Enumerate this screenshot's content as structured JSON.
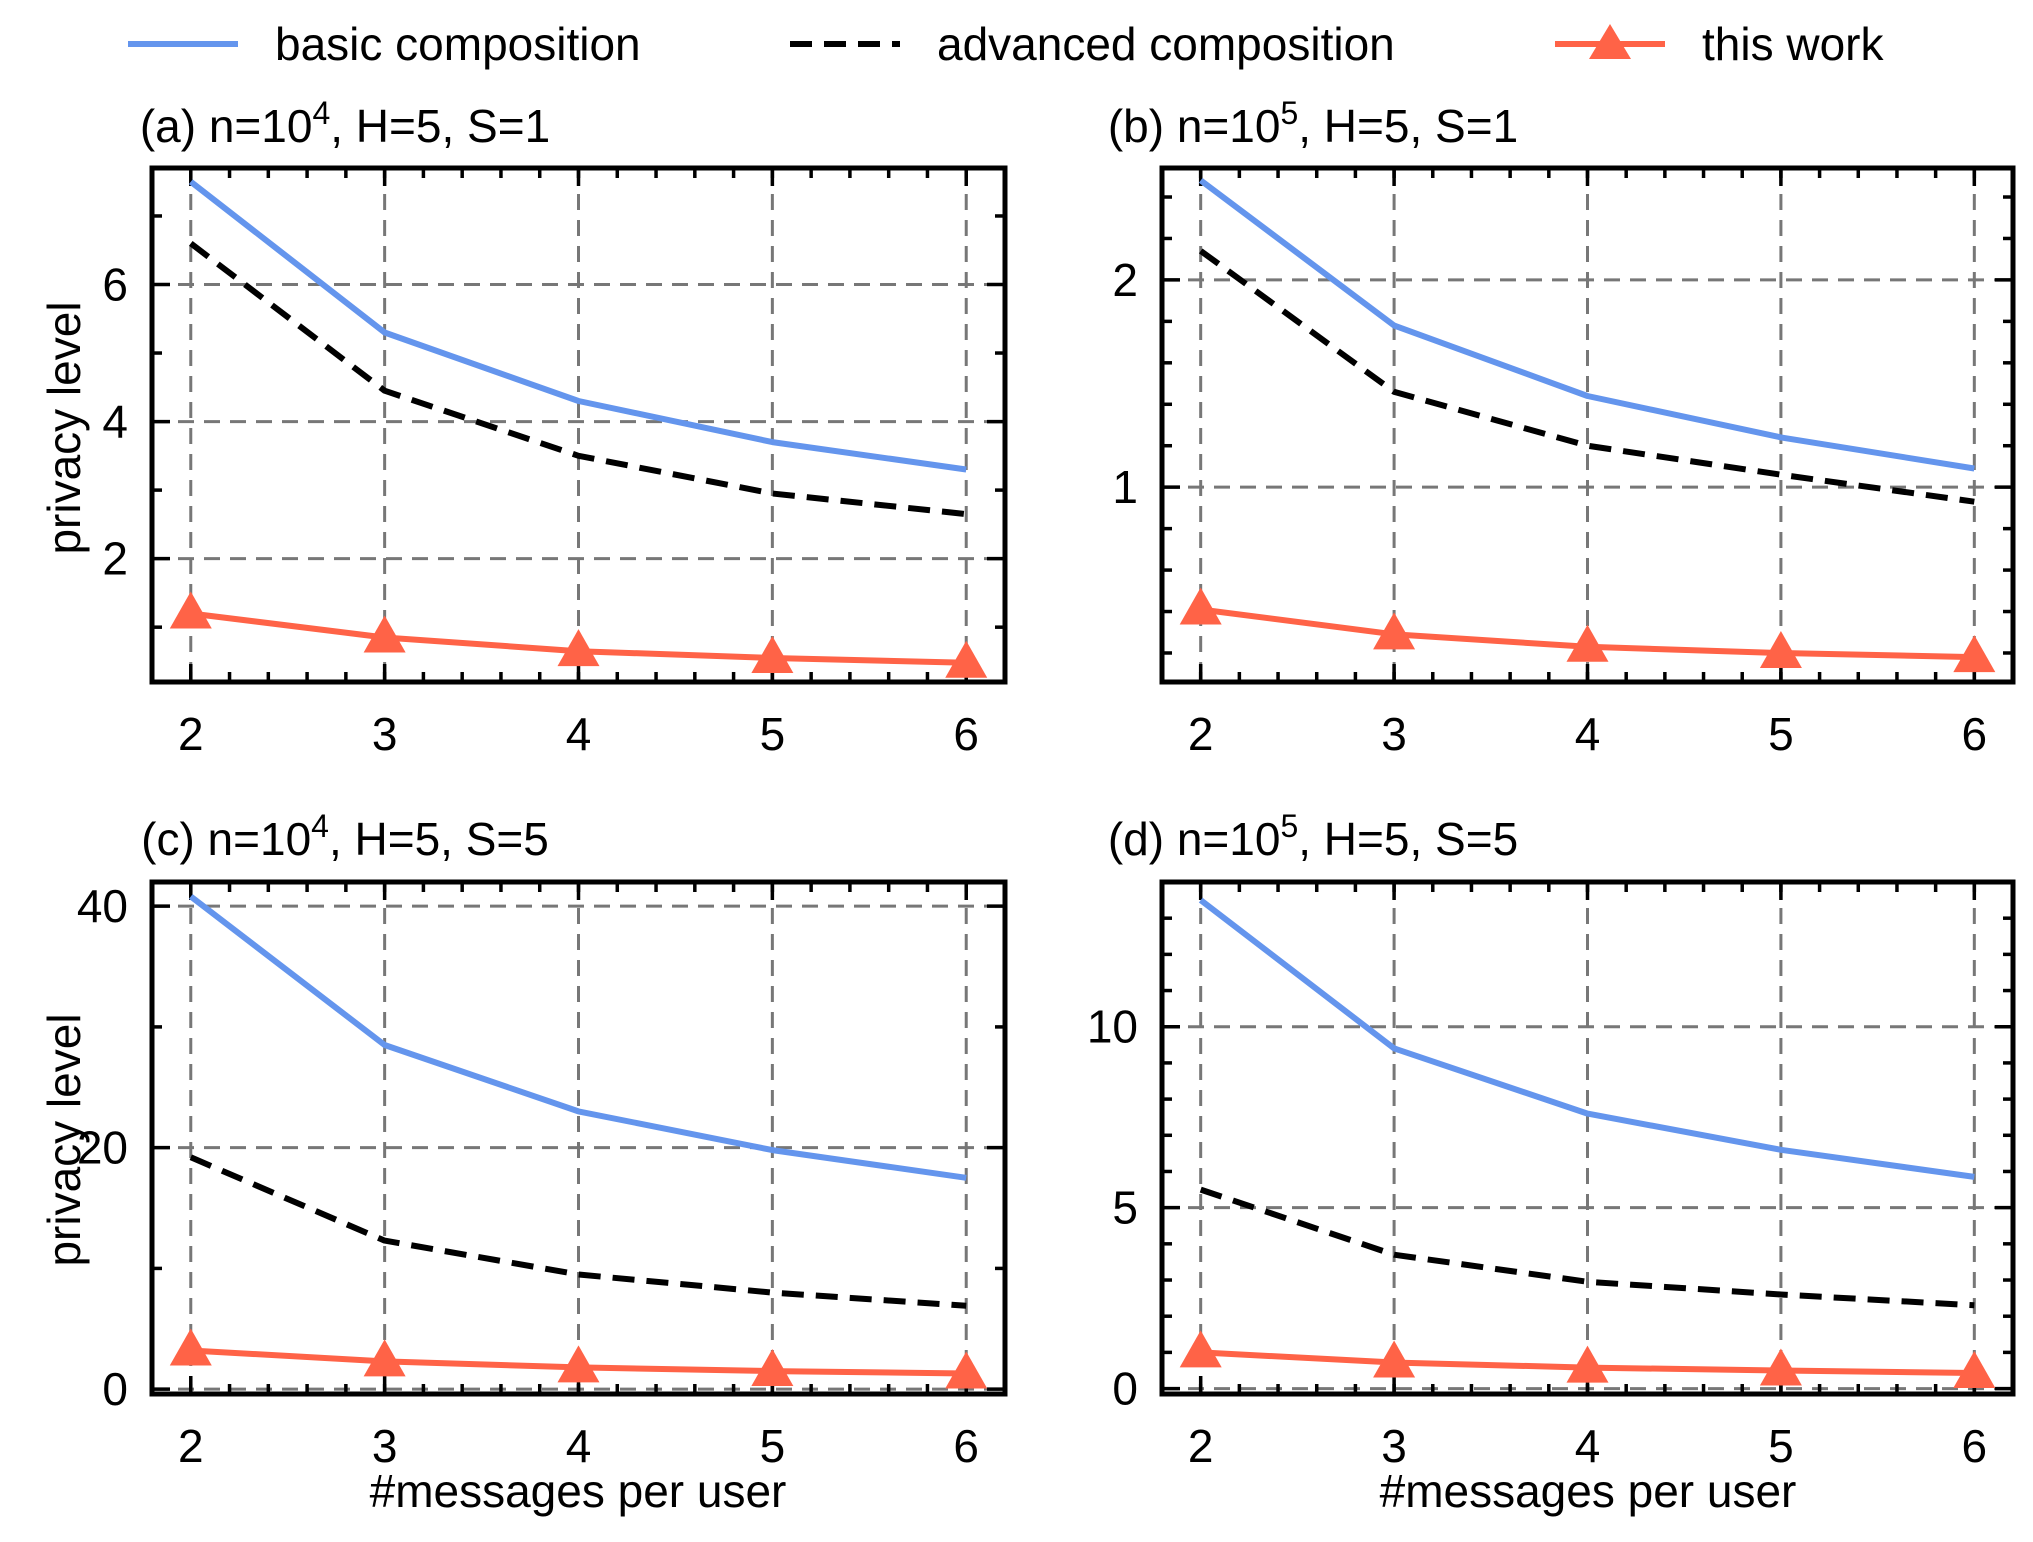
{
  "legend": [
    {
      "label": "basic composition",
      "color": "#6495ED",
      "style": "solid"
    },
    {
      "label": "advanced composition",
      "color": "#000000",
      "style": "dashed"
    },
    {
      "label": "this work",
      "color": "#FF6347",
      "style": "solid-triangle"
    }
  ],
  "chart_data": [
    {
      "type": "line",
      "panel": "a",
      "title_prefix": "(a) n=10",
      "title_exp": "4",
      "title_suffix": ", H=5, S=1",
      "xlabel": "",
      "ylabel": "privacy level",
      "categories": [
        "2",
        "3",
        "4",
        "5",
        "6"
      ],
      "x": [
        2,
        3,
        4,
        5,
        6
      ],
      "xlim": [
        1.8,
        6.2
      ],
      "ylim": [
        0.2,
        7.7
      ],
      "yticks": [
        2,
        4,
        6
      ],
      "ytick_labels": [
        "2",
        "4",
        "6"
      ],
      "yminor": [
        1,
        3,
        5,
        7
      ],
      "series": [
        {
          "name": "basic composition",
          "values": [
            7.5,
            5.3,
            4.3,
            3.7,
            3.3
          ]
        },
        {
          "name": "advanced composition",
          "values": [
            6.6,
            4.45,
            3.5,
            2.95,
            2.65
          ]
        },
        {
          "name": "this work",
          "values": [
            1.2,
            0.85,
            0.65,
            0.55,
            0.48
          ]
        }
      ]
    },
    {
      "type": "line",
      "panel": "b",
      "title_prefix": "(b) n=10",
      "title_exp": "5",
      "title_suffix": ", H=5, S=1",
      "xlabel": "",
      "ylabel": "",
      "categories": [
        "2",
        "3",
        "4",
        "5",
        "6"
      ],
      "x": [
        2,
        3,
        4,
        5,
        6
      ],
      "xlim": [
        1.8,
        6.2
      ],
      "ylim": [
        0.06,
        2.54
      ],
      "yticks": [
        1,
        2
      ],
      "ytick_labels": [
        "1",
        "2"
      ],
      "yminor": [
        0.2,
        0.4,
        0.6,
        0.8,
        1.2,
        1.4,
        1.6,
        1.8,
        2.2,
        2.4
      ],
      "series": [
        {
          "name": "basic composition",
          "values": [
            2.48,
            1.78,
            1.44,
            1.24,
            1.09
          ]
        },
        {
          "name": "advanced composition",
          "values": [
            2.14,
            1.46,
            1.2,
            1.06,
            0.93
          ]
        },
        {
          "name": "this work",
          "values": [
            0.41,
            0.29,
            0.23,
            0.2,
            0.18
          ]
        }
      ]
    },
    {
      "type": "line",
      "panel": "c",
      "title_prefix": "(c) n=10",
      "title_exp": "4",
      "title_suffix": ", H=5, S=5",
      "xlabel": "#messages per user",
      "ylabel": "privacy level",
      "categories": [
        "2",
        "3",
        "4",
        "5",
        "6"
      ],
      "x": [
        2,
        3,
        4,
        5,
        6
      ],
      "xlim": [
        1.8,
        6.2
      ],
      "ylim": [
        -0.4,
        42.0
      ],
      "yticks": [
        0,
        20,
        40
      ],
      "ytick_labels": [
        "0",
        "20",
        "40"
      ],
      "yminor": [
        10,
        30
      ],
      "series": [
        {
          "name": "basic composition",
          "values": [
            40.8,
            28.5,
            23.0,
            19.8,
            17.5
          ]
        },
        {
          "name": "advanced composition",
          "values": [
            19.2,
            12.3,
            9.5,
            8.0,
            6.9
          ]
        },
        {
          "name": "this work",
          "values": [
            3.2,
            2.3,
            1.8,
            1.5,
            1.3
          ]
        }
      ]
    },
    {
      "type": "line",
      "panel": "d",
      "title_prefix": "(d) n=10",
      "title_exp": "5",
      "title_suffix": ", H=5, S=5",
      "xlabel": "#messages per user",
      "ylabel": "",
      "categories": [
        "2",
        "3",
        "4",
        "5",
        "6"
      ],
      "x": [
        2,
        3,
        4,
        5,
        6
      ],
      "xlim": [
        1.8,
        6.2
      ],
      "ylim": [
        -0.15,
        14.0
      ],
      "yticks": [
        0,
        5,
        10
      ],
      "ytick_labels": [
        "0",
        "5",
        "10"
      ],
      "yminor": [
        1,
        2,
        3,
        4,
        6,
        7,
        8,
        9,
        11,
        12,
        13
      ],
      "series": [
        {
          "name": "basic composition",
          "values": [
            13.5,
            9.4,
            7.6,
            6.6,
            5.85
          ]
        },
        {
          "name": "advanced composition",
          "values": [
            5.5,
            3.7,
            2.95,
            2.6,
            2.3
          ]
        },
        {
          "name": "this work",
          "values": [
            1.0,
            0.72,
            0.58,
            0.5,
            0.43
          ]
        }
      ]
    }
  ]
}
